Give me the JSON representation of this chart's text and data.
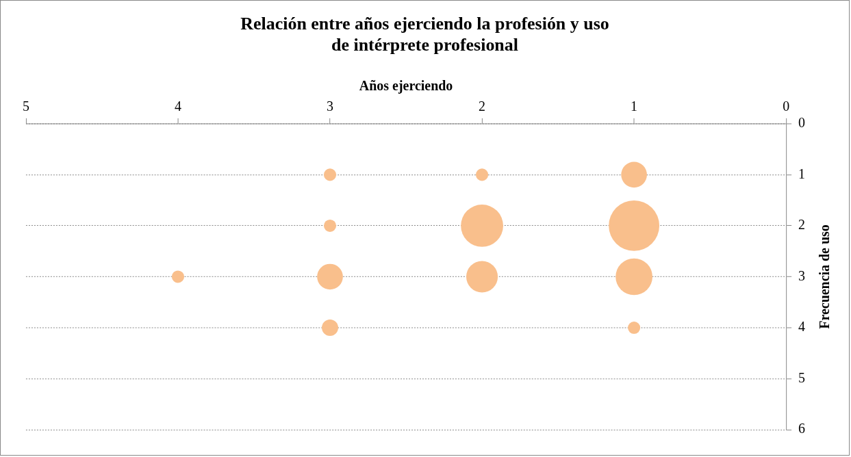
{
  "chart_data": {
    "type": "bubble",
    "title": "Relación entre años ejerciendo la profesión y uso de intérprete profesional",
    "xlabel": "Años ejerciendo",
    "ylabel": "Frecuencia de uso",
    "series": [
      {
        "color": "#f9bf8c",
        "x": [
          3,
          2,
          1,
          3,
          2,
          1,
          4,
          3,
          2,
          1,
          3,
          1
        ],
        "values": [
          1,
          1,
          1,
          2,
          2,
          2,
          3,
          3,
          3,
          3,
          4,
          4
        ],
        "sizes": [
          0.06,
          0.06,
          0.26,
          0.06,
          0.7,
          1,
          0.06,
          0.26,
          0.39,
          0.53,
          0.105,
          0.06
        ]
      }
    ],
    "xlim": [
      5,
      0
    ],
    "xticks": [
      5,
      4,
      3,
      2,
      1,
      0
    ],
    "ylim": [
      6,
      0
    ],
    "yticks": [
      0,
      1,
      2,
      3,
      4,
      5,
      6
    ],
    "grid": "y",
    "legend": false
  }
}
